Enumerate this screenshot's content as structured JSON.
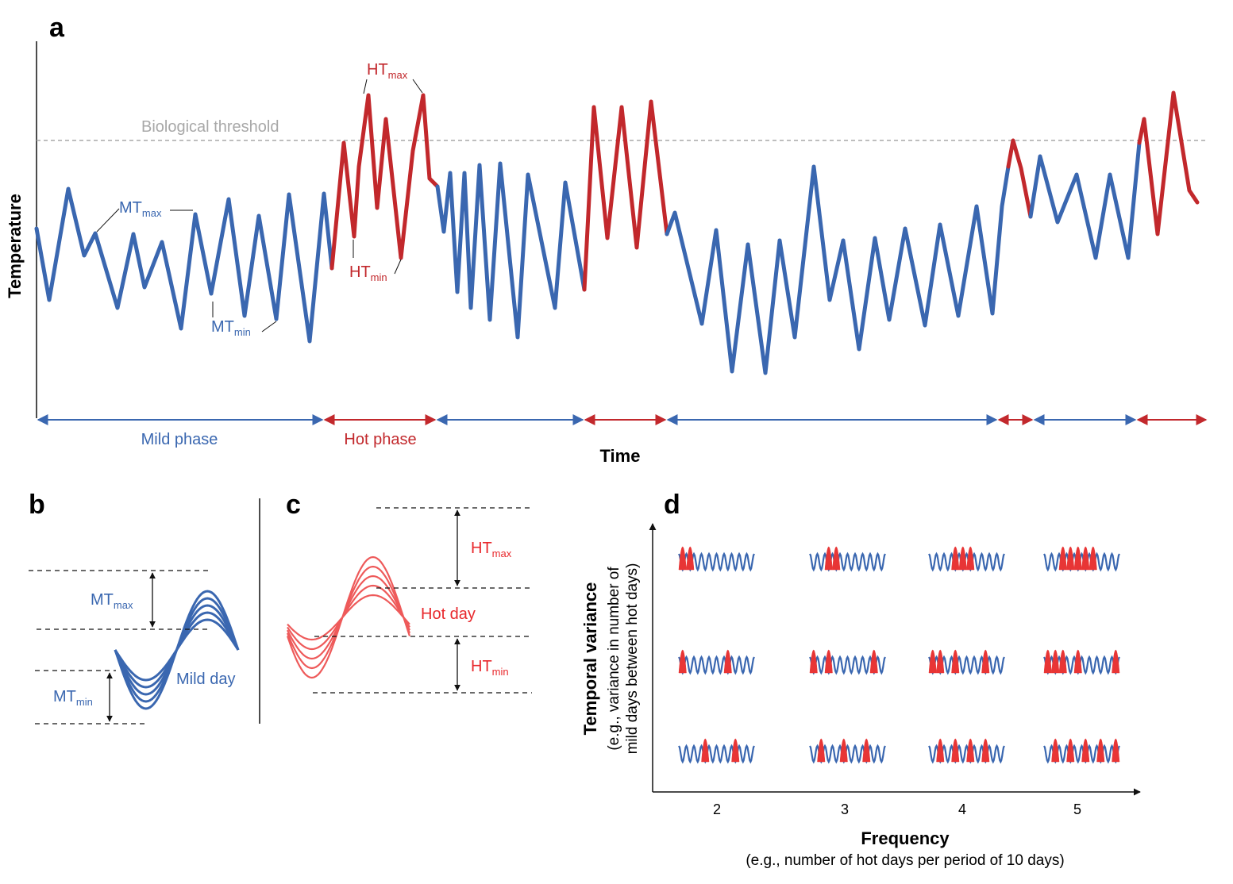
{
  "colors": {
    "mild": "#3a67b0",
    "hot": "#c2282c",
    "hot_light": "#ee5a5a",
    "threshold": "#a8a8a8",
    "ink": "#111111"
  },
  "panel_a": {
    "label": "a",
    "y_axis_title": "Temperature",
    "x_axis_title": "Time",
    "threshold_label": "Biological threshold",
    "mild_phase_label": "Mild phase",
    "hot_phase_label": "Hot phase",
    "mt_max": {
      "main": "MT",
      "sub": "max"
    },
    "mt_min": {
      "main": "MT",
      "sub": "min"
    },
    "ht_max": {
      "main": "HT",
      "sub": "max"
    },
    "ht_min": {
      "main": "HT",
      "sub": "min"
    }
  },
  "panel_b": {
    "label": "b",
    "mt_max": {
      "main": "MT",
      "sub": "max"
    },
    "mt_min": {
      "main": "MT",
      "sub": "min"
    },
    "day_label": "Mild day"
  },
  "panel_c": {
    "label": "c",
    "ht_max": {
      "main": "HT",
      "sub": "max"
    },
    "ht_min": {
      "main": "HT",
      "sub": "min"
    },
    "day_label": "Hot day"
  },
  "panel_d": {
    "label": "d",
    "y_title": "Temporal variance",
    "y_sub_1": "(e.g., variance in number of",
    "y_sub_2": "mild days between hot days)",
    "x_title": "Frequency",
    "x_sub": "(e.g., number of hot days per period of 10 days)",
    "x_ticks": [
      "2",
      "3",
      "4",
      "5"
    ]
  }
}
